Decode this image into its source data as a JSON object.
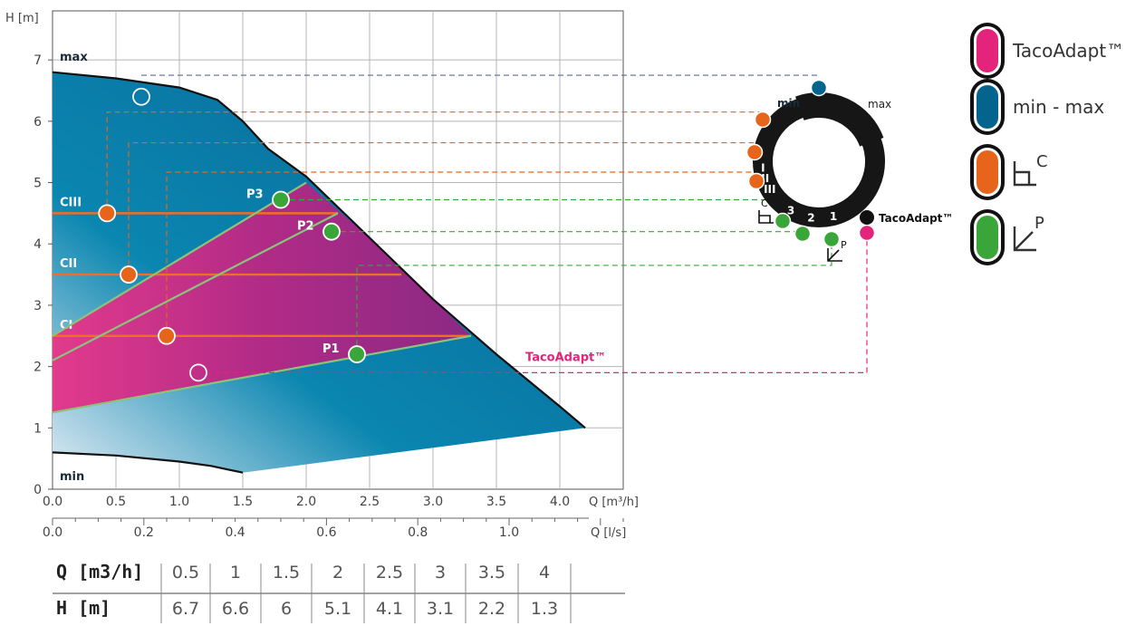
{
  "chart_data": {
    "type": "line",
    "title": "",
    "x_label": "Q [m³/h]",
    "x2_label": "Q [l/s]",
    "y_label": "H [m]",
    "xlim": [
      0,
      4.5
    ],
    "x2lim": [
      0,
      1.25
    ],
    "ylim": [
      0,
      7.8
    ],
    "x_ticks": [
      "0.0",
      "0.5",
      "1.0",
      "1.5",
      "2.0",
      "2.5",
      "3.0",
      "3.5",
      "4.0"
    ],
    "x2_ticks": [
      "0.0",
      "0.2",
      "0.4",
      "0.6",
      "0.8",
      "1.0"
    ],
    "y_ticks": [
      "0",
      "1",
      "2",
      "3",
      "4",
      "5",
      "6",
      "7"
    ],
    "curve_labels": {
      "max": "max",
      "min": "min"
    },
    "max_curve": [
      [
        0,
        6.8
      ],
      [
        0.5,
        6.7
      ],
      [
        1.0,
        6.55
      ],
      [
        1.3,
        6.35
      ],
      [
        1.5,
        6.0
      ],
      [
        1.7,
        5.55
      ],
      [
        2.0,
        5.1
      ],
      [
        2.5,
        4.1
      ],
      [
        3.0,
        3.1
      ],
      [
        3.5,
        2.2
      ],
      [
        4.0,
        1.35
      ],
      [
        4.2,
        1.0
      ]
    ],
    "min_curve": [
      [
        0,
        0.6
      ],
      [
        0.5,
        0.55
      ],
      [
        1.0,
        0.45
      ],
      [
        1.25,
        0.38
      ],
      [
        1.5,
        0.27
      ]
    ],
    "region_polygon": [
      [
        1.5,
        0.27
      ],
      [
        4.2,
        1.0
      ]
    ],
    "constant_pressure": [
      {
        "name": "CI",
        "h": 2.5,
        "x_end": 3.3,
        "marker_q": 0.9
      },
      {
        "name": "CII",
        "h": 3.5,
        "x_end": 2.75,
        "marker_q": 0.6
      },
      {
        "name": "CIII",
        "h": 4.5,
        "x_end": 2.25,
        "marker_q": 0.43
      }
    ],
    "proportional_pressure": [
      {
        "name": "P1",
        "h0": 1.25,
        "q_end": 3.3,
        "h_end": 2.5,
        "marker": [
          2.4,
          2.2
        ]
      },
      {
        "name": "P2",
        "h0": 2.1,
        "q_end": 2.25,
        "h_end": 4.5,
        "marker": [
          2.2,
          4.2
        ]
      },
      {
        "name": "P3",
        "h0": 2.5,
        "q_end": 2.0,
        "h_end": 5.0,
        "marker": [
          1.8,
          4.72
        ]
      }
    ],
    "tacoadapt_point": [
      1.15,
      1.9
    ],
    "max_point": [
      0.7,
      6.4
    ],
    "tacoadapt_label": "TacoAdapt™"
  },
  "colors": {
    "magenta": "#e4247b",
    "blue": "#04648e",
    "orange": "#e7651b",
    "green": "#3aa63a",
    "line_orange": "#ef6f23",
    "line_green": "#8bc37a",
    "purple": "#9a2a86",
    "dark": "#111111"
  },
  "dial": {
    "min_label": "min",
    "max_label": "max",
    "c_levels": [
      "I",
      "II",
      "III"
    ],
    "p_levels": [
      "1",
      "2",
      "3"
    ],
    "c_tag": "C",
    "p_tag": "P",
    "tacoadapt_label": "TacoAdapt™"
  },
  "legend": {
    "items": [
      {
        "label": "TacoAdapt™",
        "color": "#e4247b",
        "icon": "tacoadapt-icon"
      },
      {
        "label": "min - max",
        "color": "#04648e",
        "icon": "min-max-icon"
      },
      {
        "label": "C",
        "color": "#e7651b",
        "icon": "constant-pressure-icon"
      },
      {
        "label": "P",
        "color": "#3aa63a",
        "icon": "proportional-pressure-icon"
      }
    ]
  },
  "table": {
    "q_header": "Q [m3/h]",
    "h_header": "H [m]",
    "q_values": [
      "0.5",
      "1",
      "1.5",
      "2",
      "2.5",
      "3",
      "3.5",
      "4"
    ],
    "h_values": [
      "6.7",
      "6.6",
      "6",
      "5.1",
      "4.1",
      "3.1",
      "2.2",
      "1.3"
    ]
  }
}
